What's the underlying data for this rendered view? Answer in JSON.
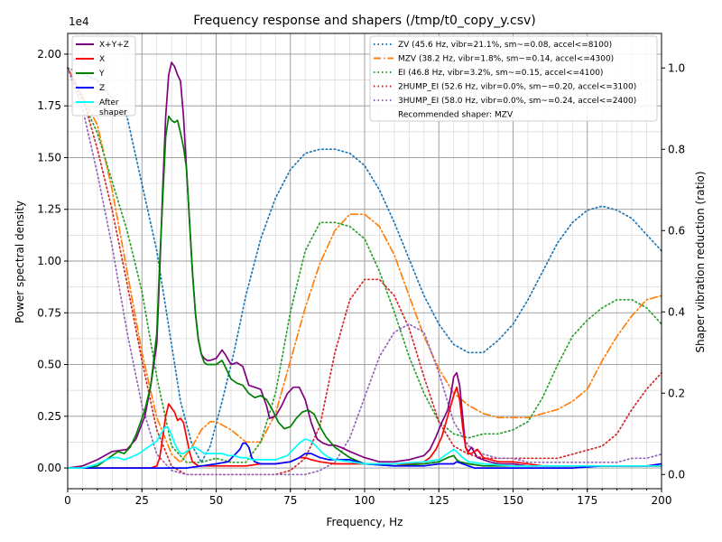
{
  "chart_data": {
    "type": "line",
    "title": "Frequency response and shapers (/tmp/t0_copy_y.csv)",
    "xlabel": "Frequency, Hz",
    "ylabel": "Power spectral density",
    "y2label": "Shaper vibration reduction (ratio)",
    "y_offset_label": "1e4",
    "xlim": [
      0,
      200
    ],
    "ylim": [
      -0.1,
      2.1
    ],
    "y2lim": [
      -0.035,
      1.085
    ],
    "x_ticks": [
      "0",
      "25",
      "50",
      "75",
      "100",
      "125",
      "150",
      "175",
      "200"
    ],
    "y_ticks": [
      "0.00",
      "0.25",
      "0.50",
      "0.75",
      "1.00",
      "1.25",
      "1.50",
      "1.75",
      "2.00"
    ],
    "y2_ticks": [
      "0.0",
      "0.2",
      "0.4",
      "0.6",
      "0.8",
      "1.0"
    ],
    "grid": "on",
    "legend_left_position": "top-left",
    "legend_right_position": "top-right",
    "psd_series": [
      {
        "name": "X+Y+Z",
        "color": "#800080",
        "style": "solid",
        "x": [
          0,
          5,
          10,
          15,
          20,
          23,
          26,
          28,
          30,
          31,
          32,
          33,
          34,
          35,
          36,
          37,
          38,
          39,
          40,
          41,
          42,
          43,
          44,
          45,
          46,
          47,
          48,
          50,
          52,
          53,
          55,
          57,
          59,
          61,
          63,
          65,
          67,
          68,
          70,
          72,
          74,
          76,
          78,
          80,
          82,
          84,
          86,
          88,
          90,
          92,
          95,
          100,
          105,
          110,
          115,
          120,
          122,
          124,
          126,
          128,
          129,
          130,
          131,
          132,
          133,
          134,
          135,
          136,
          138,
          140,
          142,
          145,
          150,
          155,
          160,
          165,
          170,
          180,
          190,
          200
        ],
        "y": [
          0.0,
          0.01,
          0.04,
          0.08,
          0.09,
          0.14,
          0.25,
          0.4,
          0.6,
          0.95,
          1.35,
          1.7,
          1.9,
          1.96,
          1.94,
          1.9,
          1.87,
          1.7,
          1.45,
          1.2,
          0.95,
          0.75,
          0.62,
          0.55,
          0.53,
          0.52,
          0.52,
          0.53,
          0.57,
          0.55,
          0.5,
          0.51,
          0.49,
          0.4,
          0.39,
          0.38,
          0.3,
          0.24,
          0.25,
          0.3,
          0.36,
          0.39,
          0.39,
          0.33,
          0.22,
          0.14,
          0.12,
          0.11,
          0.11,
          0.1,
          0.08,
          0.05,
          0.03,
          0.03,
          0.04,
          0.06,
          0.09,
          0.15,
          0.22,
          0.28,
          0.35,
          0.44,
          0.46,
          0.4,
          0.25,
          0.1,
          0.08,
          0.1,
          0.05,
          0.04,
          0.03,
          0.02,
          0.02,
          0.01,
          0.01,
          0.01,
          0.01,
          0.01,
          0.01,
          0.01
        ]
      },
      {
        "name": "X",
        "color": "#ff0000",
        "style": "solid",
        "x": [
          0,
          10,
          20,
          28,
          30,
          31,
          32,
          33,
          34,
          35,
          36,
          37,
          38,
          39,
          40,
          41,
          42,
          43,
          44,
          45,
          46,
          50,
          55,
          60,
          65,
          70,
          75,
          78,
          80,
          82,
          85,
          90,
          95,
          100,
          110,
          115,
          120,
          122,
          124,
          126,
          128,
          130,
          131,
          132,
          133,
          134,
          135,
          136,
          137,
          138,
          140,
          145,
          150,
          160,
          170,
          180,
          190,
          200
        ],
        "y": [
          0.0,
          0.0,
          0.0,
          0.0,
          0.01,
          0.05,
          0.15,
          0.25,
          0.31,
          0.29,
          0.27,
          0.23,
          0.24,
          0.22,
          0.15,
          0.08,
          0.03,
          0.02,
          0.01,
          0.01,
          0.01,
          0.01,
          0.01,
          0.01,
          0.02,
          0.02,
          0.03,
          0.05,
          0.05,
          0.04,
          0.03,
          0.02,
          0.02,
          0.02,
          0.02,
          0.02,
          0.03,
          0.05,
          0.09,
          0.15,
          0.25,
          0.35,
          0.39,
          0.33,
          0.2,
          0.1,
          0.07,
          0.07,
          0.08,
          0.09,
          0.05,
          0.03,
          0.03,
          0.01,
          0.01,
          0.01,
          0.01,
          0.01
        ]
      },
      {
        "name": "Y",
        "color": "#008000",
        "style": "solid",
        "x": [
          0,
          5,
          10,
          12,
          15,
          17,
          19,
          21,
          23,
          26,
          28,
          30,
          31,
          32,
          33,
          34,
          35,
          36,
          37,
          38,
          39,
          40,
          41,
          42,
          43,
          44,
          45,
          46,
          47,
          48,
          50,
          52,
          53,
          55,
          57,
          59,
          61,
          63,
          65,
          67,
          69,
          71,
          73,
          75,
          77,
          79,
          81,
          83,
          85,
          87,
          90,
          95,
          100,
          110,
          120,
          125,
          128,
          130,
          131,
          132,
          135,
          140,
          150,
          160,
          170,
          180,
          190,
          200
        ],
        "y": [
          0.0,
          0.0,
          0.01,
          0.03,
          0.06,
          0.08,
          0.07,
          0.1,
          0.16,
          0.28,
          0.4,
          0.65,
          1.0,
          1.3,
          1.6,
          1.7,
          1.68,
          1.67,
          1.68,
          1.62,
          1.55,
          1.45,
          1.2,
          0.95,
          0.75,
          0.62,
          0.55,
          0.51,
          0.5,
          0.5,
          0.5,
          0.52,
          0.49,
          0.43,
          0.41,
          0.4,
          0.36,
          0.34,
          0.35,
          0.33,
          0.28,
          0.22,
          0.19,
          0.2,
          0.24,
          0.27,
          0.28,
          0.26,
          0.2,
          0.15,
          0.1,
          0.05,
          0.02,
          0.01,
          0.02,
          0.03,
          0.05,
          0.06,
          0.04,
          0.03,
          0.02,
          0.01,
          0.01,
          0.01,
          0.01,
          0.01,
          0.01,
          0.01
        ]
      },
      {
        "name": "Z",
        "color": "#0000ff",
        "style": "solid",
        "x": [
          0,
          20,
          40,
          45,
          50,
          54,
          56,
          58,
          59,
          60,
          61,
          62,
          63,
          65,
          70,
          75,
          78,
          80,
          82,
          85,
          88,
          90,
          95,
          100,
          110,
          120,
          125,
          128,
          130,
          131,
          133,
          135,
          137,
          140,
          150,
          160,
          170,
          180,
          190,
          195,
          200
        ],
        "y": [
          0.0,
          0.0,
          0.0,
          0.01,
          0.02,
          0.03,
          0.06,
          0.09,
          0.12,
          0.12,
          0.1,
          0.05,
          0.03,
          0.02,
          0.02,
          0.03,
          0.05,
          0.07,
          0.07,
          0.05,
          0.04,
          0.04,
          0.04,
          0.02,
          0.01,
          0.01,
          0.02,
          0.02,
          0.02,
          0.03,
          0.02,
          0.01,
          0.0,
          0.0,
          0.0,
          0.0,
          0.0,
          0.01,
          0.01,
          0.01,
          0.02
        ]
      },
      {
        "name": "After\nshaper",
        "color": "#00ffff",
        "style": "solid",
        "x": [
          0,
          5,
          8,
          10,
          13,
          15,
          17,
          19,
          21,
          24,
          27,
          30,
          32,
          33,
          34,
          35,
          36,
          37,
          38,
          39,
          40,
          41,
          42,
          43,
          44,
          45,
          46,
          48,
          50,
          52,
          54,
          56,
          58,
          60,
          62,
          64,
          66,
          68,
          70,
          72,
          74,
          76,
          78,
          80,
          82,
          84,
          86,
          88,
          90,
          95,
          100,
          110,
          120,
          125,
          127,
          129,
          130,
          131,
          133,
          135,
          140,
          150,
          160,
          170,
          180,
          190,
          200
        ],
        "y": [
          0.0,
          0.0,
          0.01,
          0.02,
          0.04,
          0.05,
          0.05,
          0.04,
          0.05,
          0.07,
          0.1,
          0.13,
          0.18,
          0.2,
          0.19,
          0.16,
          0.12,
          0.09,
          0.07,
          0.07,
          0.08,
          0.09,
          0.1,
          0.1,
          0.09,
          0.08,
          0.07,
          0.07,
          0.07,
          0.07,
          0.06,
          0.06,
          0.05,
          0.05,
          0.04,
          0.04,
          0.04,
          0.04,
          0.04,
          0.05,
          0.06,
          0.09,
          0.12,
          0.14,
          0.13,
          0.1,
          0.07,
          0.05,
          0.04,
          0.03,
          0.02,
          0.02,
          0.03,
          0.04,
          0.06,
          0.08,
          0.09,
          0.08,
          0.05,
          0.03,
          0.02,
          0.01,
          0.01,
          0.01,
          0.01,
          0.01,
          0.01
        ]
      }
    ],
    "shaper_series": [
      {
        "name": "ZV (45.6 Hz, vibr=21.1%, sm~=0.08, accel<=8100)",
        "color": "#1f77b4",
        "style": "dotted",
        "x": [
          0,
          10,
          20,
          30,
          38,
          42,
          45,
          48,
          52,
          56,
          60,
          65,
          70,
          75,
          80,
          85,
          90,
          95,
          100,
          105,
          110,
          115,
          120,
          125,
          130,
          135,
          138,
          140,
          145,
          150,
          155,
          160,
          165,
          170,
          175,
          180,
          185,
          190,
          195,
          200
        ],
        "y": [
          1.0,
          0.97,
          0.88,
          0.55,
          0.18,
          0.07,
          0.03,
          0.07,
          0.18,
          0.3,
          0.44,
          0.58,
          0.68,
          0.75,
          0.79,
          0.8,
          0.8,
          0.79,
          0.76,
          0.7,
          0.62,
          0.53,
          0.44,
          0.37,
          0.32,
          0.3,
          0.3,
          0.3,
          0.33,
          0.37,
          0.43,
          0.5,
          0.57,
          0.62,
          0.65,
          0.66,
          0.65,
          0.63,
          0.59,
          0.55
        ]
      },
      {
        "name": "MZV (38.2 Hz, vibr=1.8%, sm~=0.14, accel<=4300)",
        "color": "#ff7f0e",
        "style": "dashdot",
        "x": [
          0,
          10,
          15,
          20,
          25,
          30,
          35,
          38,
          42,
          45,
          48,
          50,
          55,
          60,
          65,
          70,
          75,
          80,
          85,
          90,
          95,
          100,
          105,
          110,
          115,
          120,
          125,
          130,
          135,
          140,
          145,
          150,
          155,
          160,
          165,
          170,
          175,
          180,
          185,
          190,
          195,
          200
        ],
        "y": [
          1.0,
          0.86,
          0.7,
          0.5,
          0.3,
          0.14,
          0.05,
          0.03,
          0.07,
          0.11,
          0.13,
          0.13,
          0.11,
          0.08,
          0.08,
          0.15,
          0.28,
          0.41,
          0.52,
          0.6,
          0.64,
          0.64,
          0.61,
          0.54,
          0.44,
          0.34,
          0.26,
          0.2,
          0.17,
          0.15,
          0.14,
          0.14,
          0.14,
          0.15,
          0.16,
          0.18,
          0.21,
          0.28,
          0.34,
          0.39,
          0.43,
          0.44
        ]
      },
      {
        "name": "EI (46.8 Hz, vibr=3.2%, sm~=0.15, accel<=4100)",
        "color": "#2ca02c",
        "style": "dotted",
        "x": [
          0,
          10,
          20,
          25,
          30,
          35,
          40,
          45,
          50,
          55,
          60,
          65,
          70,
          75,
          80,
          85,
          90,
          95,
          100,
          105,
          110,
          115,
          120,
          125,
          130,
          135,
          140,
          145,
          150,
          155,
          160,
          165,
          170,
          175,
          180,
          185,
          190,
          195,
          200
        ],
        "y": [
          1.0,
          0.84,
          0.6,
          0.45,
          0.24,
          0.07,
          0.03,
          0.03,
          0.04,
          0.03,
          0.03,
          0.08,
          0.2,
          0.4,
          0.55,
          0.62,
          0.62,
          0.61,
          0.58,
          0.5,
          0.4,
          0.29,
          0.2,
          0.13,
          0.1,
          0.09,
          0.1,
          0.1,
          0.11,
          0.13,
          0.19,
          0.27,
          0.34,
          0.38,
          0.41,
          0.43,
          0.43,
          0.41,
          0.37
        ]
      },
      {
        "name": "2HUMP_EI (52.6 Hz, vibr=0.0%, sm~=0.20, accel<=3100)",
        "color": "#d62728",
        "style": "dotted",
        "x": [
          0,
          5,
          10,
          15,
          20,
          25,
          30,
          35,
          40,
          45,
          50,
          55,
          60,
          65,
          70,
          75,
          80,
          85,
          90,
          95,
          100,
          105,
          110,
          115,
          120,
          125,
          130,
          135,
          140,
          145,
          150,
          155,
          160,
          165,
          170,
          175,
          180,
          185,
          190,
          195,
          200
        ],
        "y": [
          1.0,
          0.93,
          0.8,
          0.65,
          0.47,
          0.28,
          0.11,
          0.02,
          0.0,
          0.0,
          0.0,
          0.0,
          0.0,
          0.0,
          0.0,
          0.01,
          0.04,
          0.12,
          0.3,
          0.43,
          0.48,
          0.48,
          0.44,
          0.36,
          0.24,
          0.13,
          0.07,
          0.05,
          0.04,
          0.04,
          0.04,
          0.04,
          0.04,
          0.04,
          0.05,
          0.06,
          0.07,
          0.1,
          0.16,
          0.21,
          0.25
        ]
      },
      {
        "name": "3HUMP_EI (58.0 Hz, vibr=0.0%, sm~=0.24, accel<=2400)",
        "color": "#9467bd",
        "style": "dotted",
        "x": [
          0,
          5,
          10,
          15,
          20,
          25,
          30,
          35,
          40,
          45,
          50,
          55,
          60,
          65,
          70,
          75,
          80,
          85,
          90,
          95,
          100,
          105,
          110,
          115,
          120,
          125,
          130,
          135,
          140,
          145,
          150,
          155,
          160,
          165,
          170,
          175,
          180,
          185,
          190,
          195,
          200
        ],
        "y": [
          1.0,
          0.9,
          0.74,
          0.56,
          0.35,
          0.17,
          0.05,
          0.01,
          0.0,
          0.0,
          0.0,
          0.0,
          0.0,
          0.0,
          0.0,
          0.0,
          0.0,
          0.01,
          0.03,
          0.09,
          0.19,
          0.29,
          0.35,
          0.37,
          0.35,
          0.25,
          0.13,
          0.07,
          0.05,
          0.04,
          0.04,
          0.03,
          0.03,
          0.03,
          0.03,
          0.03,
          0.03,
          0.03,
          0.04,
          0.04,
          0.05
        ]
      }
    ],
    "recommended_note": "Recommended shaper: MZV"
  }
}
